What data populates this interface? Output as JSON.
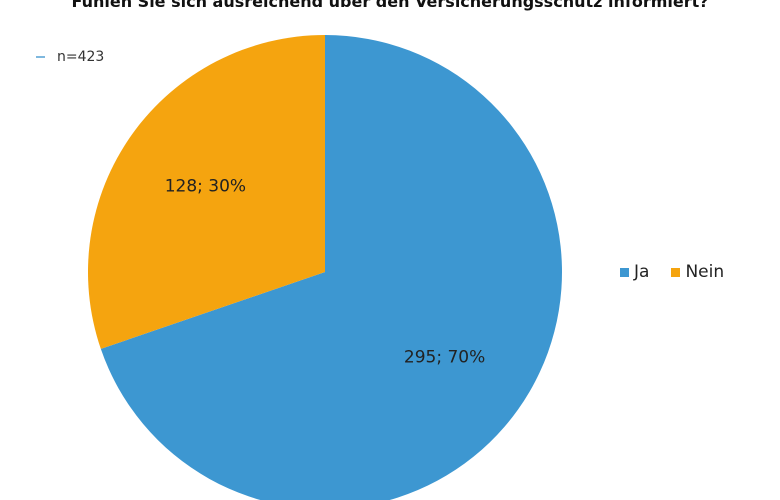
{
  "chart_data": {
    "type": "pie",
    "title": "Fühlen Sie sich ausreichend über den Versicherungsschutz informiert?",
    "note": "n=423",
    "categories": [
      "Ja",
      "Nein"
    ],
    "values": [
      295,
      128
    ],
    "percentages": [
      70,
      30
    ],
    "data_labels": [
      "295; 70%",
      "128; 30%"
    ],
    "colors": [
      "#3d97d1",
      "#f5a40f"
    ],
    "legend_position": "right"
  }
}
